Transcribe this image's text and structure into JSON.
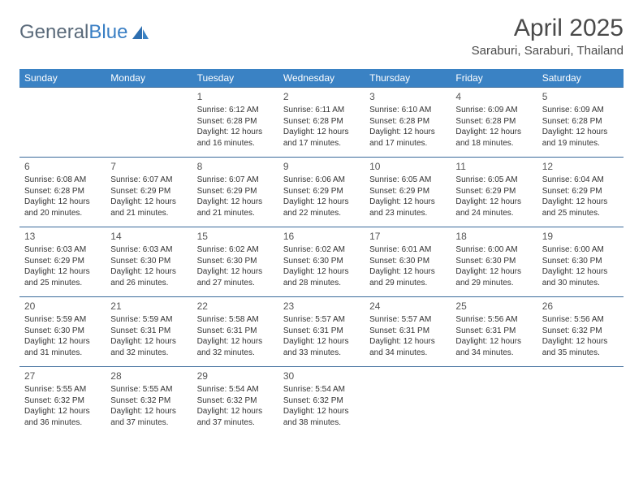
{
  "logo": {
    "text1": "General",
    "text2": "Blue"
  },
  "title": "April 2025",
  "location": "Saraburi, Saraburi, Thailand",
  "colors": {
    "header_bg": "#3a82c4",
    "header_fg": "#ffffff",
    "cell_border": "#3a6a9a",
    "text": "#333333",
    "logo_gray": "#5a6a7a",
    "logo_blue": "#3a7fc4"
  },
  "dayNames": [
    "Sunday",
    "Monday",
    "Tuesday",
    "Wednesday",
    "Thursday",
    "Friday",
    "Saturday"
  ],
  "weeks": [
    [
      null,
      null,
      {
        "d": "1",
        "sr": "6:12 AM",
        "ss": "6:28 PM",
        "dl": "12 hours and 16 minutes."
      },
      {
        "d": "2",
        "sr": "6:11 AM",
        "ss": "6:28 PM",
        "dl": "12 hours and 17 minutes."
      },
      {
        "d": "3",
        "sr": "6:10 AM",
        "ss": "6:28 PM",
        "dl": "12 hours and 17 minutes."
      },
      {
        "d": "4",
        "sr": "6:09 AM",
        "ss": "6:28 PM",
        "dl": "12 hours and 18 minutes."
      },
      {
        "d": "5",
        "sr": "6:09 AM",
        "ss": "6:28 PM",
        "dl": "12 hours and 19 minutes."
      }
    ],
    [
      {
        "d": "6",
        "sr": "6:08 AM",
        "ss": "6:28 PM",
        "dl": "12 hours and 20 minutes."
      },
      {
        "d": "7",
        "sr": "6:07 AM",
        "ss": "6:29 PM",
        "dl": "12 hours and 21 minutes."
      },
      {
        "d": "8",
        "sr": "6:07 AM",
        "ss": "6:29 PM",
        "dl": "12 hours and 21 minutes."
      },
      {
        "d": "9",
        "sr": "6:06 AM",
        "ss": "6:29 PM",
        "dl": "12 hours and 22 minutes."
      },
      {
        "d": "10",
        "sr": "6:05 AM",
        "ss": "6:29 PM",
        "dl": "12 hours and 23 minutes."
      },
      {
        "d": "11",
        "sr": "6:05 AM",
        "ss": "6:29 PM",
        "dl": "12 hours and 24 minutes."
      },
      {
        "d": "12",
        "sr": "6:04 AM",
        "ss": "6:29 PM",
        "dl": "12 hours and 25 minutes."
      }
    ],
    [
      {
        "d": "13",
        "sr": "6:03 AM",
        "ss": "6:29 PM",
        "dl": "12 hours and 25 minutes."
      },
      {
        "d": "14",
        "sr": "6:03 AM",
        "ss": "6:30 PM",
        "dl": "12 hours and 26 minutes."
      },
      {
        "d": "15",
        "sr": "6:02 AM",
        "ss": "6:30 PM",
        "dl": "12 hours and 27 minutes."
      },
      {
        "d": "16",
        "sr": "6:02 AM",
        "ss": "6:30 PM",
        "dl": "12 hours and 28 minutes."
      },
      {
        "d": "17",
        "sr": "6:01 AM",
        "ss": "6:30 PM",
        "dl": "12 hours and 29 minutes."
      },
      {
        "d": "18",
        "sr": "6:00 AM",
        "ss": "6:30 PM",
        "dl": "12 hours and 29 minutes."
      },
      {
        "d": "19",
        "sr": "6:00 AM",
        "ss": "6:30 PM",
        "dl": "12 hours and 30 minutes."
      }
    ],
    [
      {
        "d": "20",
        "sr": "5:59 AM",
        "ss": "6:30 PM",
        "dl": "12 hours and 31 minutes."
      },
      {
        "d": "21",
        "sr": "5:59 AM",
        "ss": "6:31 PM",
        "dl": "12 hours and 32 minutes."
      },
      {
        "d": "22",
        "sr": "5:58 AM",
        "ss": "6:31 PM",
        "dl": "12 hours and 32 minutes."
      },
      {
        "d": "23",
        "sr": "5:57 AM",
        "ss": "6:31 PM",
        "dl": "12 hours and 33 minutes."
      },
      {
        "d": "24",
        "sr": "5:57 AM",
        "ss": "6:31 PM",
        "dl": "12 hours and 34 minutes."
      },
      {
        "d": "25",
        "sr": "5:56 AM",
        "ss": "6:31 PM",
        "dl": "12 hours and 34 minutes."
      },
      {
        "d": "26",
        "sr": "5:56 AM",
        "ss": "6:32 PM",
        "dl": "12 hours and 35 minutes."
      }
    ],
    [
      {
        "d": "27",
        "sr": "5:55 AM",
        "ss": "6:32 PM",
        "dl": "12 hours and 36 minutes."
      },
      {
        "d": "28",
        "sr": "5:55 AM",
        "ss": "6:32 PM",
        "dl": "12 hours and 37 minutes."
      },
      {
        "d": "29",
        "sr": "5:54 AM",
        "ss": "6:32 PM",
        "dl": "12 hours and 37 minutes."
      },
      {
        "d": "30",
        "sr": "5:54 AM",
        "ss": "6:32 PM",
        "dl": "12 hours and 38 minutes."
      },
      null,
      null,
      null
    ]
  ],
  "labels": {
    "sunrise": "Sunrise: ",
    "sunset": "Sunset: ",
    "daylight": "Daylight: "
  }
}
